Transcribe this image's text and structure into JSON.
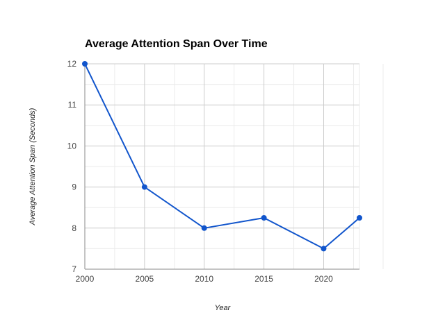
{
  "chart_data": {
    "type": "line",
    "title": "Average Attention Span Over Time",
    "xlabel": "Year",
    "ylabel": "Average Attention Span (Seconds)",
    "x": [
      2000,
      2005,
      2010,
      2015,
      2020,
      2023
    ],
    "series": [
      {
        "values": [
          12,
          9,
          8,
          8.25,
          7.5,
          8.25
        ]
      }
    ],
    "xlim": [
      2000,
      2023
    ],
    "ylim": [
      7,
      12
    ],
    "x_ticks": [
      "2000",
      "2005",
      "2010",
      "2015",
      "2020"
    ],
    "y_ticks": [
      "7",
      "8",
      "9",
      "10",
      "11",
      "12"
    ],
    "grid": true,
    "line_color": "#1155cc",
    "grid_color": "#cccccc",
    "minor_grid_color": "#ebebeb"
  }
}
